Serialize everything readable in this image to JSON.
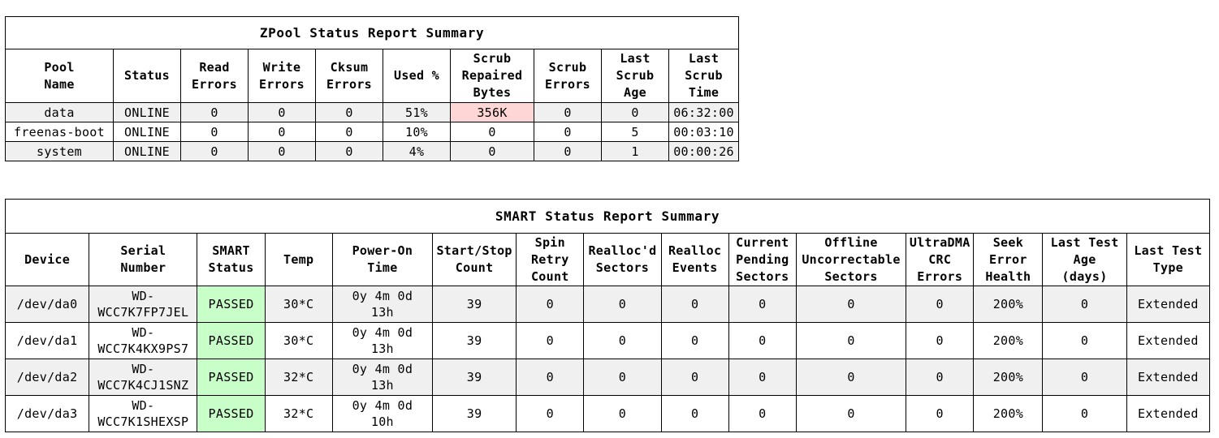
{
  "zpool": {
    "title": "ZPool Status Report Summary",
    "headers": [
      "Pool\nName",
      "Status",
      "Read\nErrors",
      "Write\nErrors",
      "Cksum\nErrors",
      "Used %",
      "Scrub\nRepaired\nBytes",
      "Scrub\nErrors",
      "Last\nScrub\nAge",
      "Last\nScrub\nTime"
    ],
    "rows": [
      [
        "data",
        "ONLINE",
        "0",
        "0",
        "0",
        "51%",
        "356K",
        "0",
        "0",
        "06:32:00"
      ],
      [
        "freenas-boot",
        "ONLINE",
        "0",
        "0",
        "0",
        "10%",
        "0",
        "0",
        "5",
        "00:03:10"
      ],
      [
        "system",
        "ONLINE",
        "0",
        "0",
        "0",
        "4%",
        "0",
        "0",
        "1",
        "00:00:26"
      ]
    ],
    "highlight_color": "#ffd6d6"
  },
  "smart": {
    "title": "SMART Status Report Summary",
    "headers": [
      "Device",
      "Serial\nNumber",
      "SMART\nStatus",
      "Temp",
      "Power-On\nTime",
      "Start/Stop\nCount",
      "Spin\nRetry\nCount",
      "Realloc'd\nSectors",
      "Realloc\nEvents",
      "Current\nPending\nSectors",
      "Offline\nUncorrectable\nSectors",
      "UltraDMA\nCRC\nErrors",
      "Seek\nError\nHealth",
      "Last Test\nAge\n(days)",
      "Last Test\nType"
    ],
    "rows": [
      [
        "/dev/da0",
        "WD-\nWCC7K7FP7JEL",
        "PASSED",
        "30*C",
        "0y 4m 0d\n13h",
        "39",
        "0",
        "0",
        "0",
        "0",
        "0",
        "0",
        "200%",
        "0",
        "Extended"
      ],
      [
        "/dev/da1",
        "WD-\nWCC7K4KX9PS7",
        "PASSED",
        "30*C",
        "0y 4m 0d\n13h",
        "39",
        "0",
        "0",
        "0",
        "0",
        "0",
        "0",
        "200%",
        "0",
        "Extended"
      ],
      [
        "/dev/da2",
        "WD-\nWCC7K4CJ1SNZ",
        "PASSED",
        "32*C",
        "0y 4m 0d\n13h",
        "39",
        "0",
        "0",
        "0",
        "0",
        "0",
        "0",
        "200%",
        "0",
        "Extended"
      ],
      [
        "/dev/da3",
        "WD-\nWCC7K1SHEXSP",
        "PASSED",
        "32*C",
        "0y 4m 0d\n10h",
        "39",
        "0",
        "0",
        "0",
        "0",
        "0",
        "0",
        "200%",
        "0",
        "Extended"
      ]
    ],
    "passed_color": "#c8ffc8"
  }
}
